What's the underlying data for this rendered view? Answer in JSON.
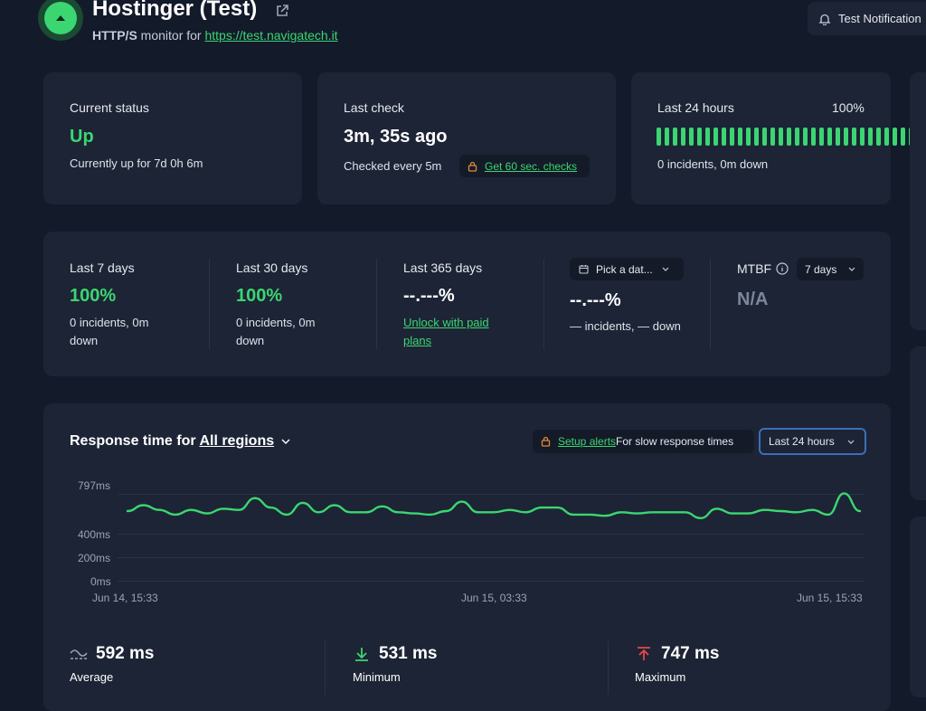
{
  "header": {
    "title": "Hostinger (Test)",
    "subtitle_type": "HTTP/S",
    "subtitle_mid": " monitor for ",
    "url": "https://test.navigatech.it",
    "test_notification_label": "Test Notification"
  },
  "current_status": {
    "label": "Current status",
    "value": "Up",
    "detail": "Currently up for 7d 0h 6m"
  },
  "last_check": {
    "label": "Last check",
    "value": "3m, 35s ago",
    "interval": "Checked every 5m",
    "upgrade_link": "Get 60 sec. checks"
  },
  "last_24h": {
    "label": "Last 24 hours",
    "percent": "100%",
    "detail": "0 incidents, 0m down",
    "bar_count": 32
  },
  "uptime_stats": {
    "last7": {
      "label": "Last 7 days",
      "value": "100%",
      "detail1": "0 incidents, 0m",
      "detail2": "down"
    },
    "last30": {
      "label": "Last 30 days",
      "value": "100%",
      "detail1": "0 incidents, 0m",
      "detail2": "down"
    },
    "last365": {
      "label": "Last 365 days",
      "value": "--.---%",
      "link1": "Unlock with paid",
      "link2": "plans"
    },
    "custom": {
      "picker_label": "Pick a dat...",
      "value": "--.---%",
      "detail": "— incidents, — down"
    },
    "mtbf": {
      "label": "MTBF",
      "select": "7 days",
      "value": "N/A"
    }
  },
  "response_time": {
    "title_prefix": "Response time for ",
    "region_link": "All regions",
    "alert_link": "Setup alerts",
    "alert_text": " For slow response times",
    "range_select": "Last 24 hours"
  },
  "chart_data": {
    "type": "line",
    "y_ticks": [
      "797ms",
      "400ms",
      "200ms",
      "0ms"
    ],
    "x_ticks": [
      "Jun 14, 15:33",
      "Jun 15, 03:33",
      "Jun 15, 15:33"
    ],
    "ylim": [
      0,
      797
    ],
    "series": [
      {
        "values": [
          590,
          640,
          600,
          560,
          600,
          570,
          610,
          600,
          700,
          620,
          560,
          660,
          580,
          640,
          580,
          580,
          630,
          580,
          570,
          560,
          590,
          670,
          580,
          580,
          600,
          580,
          620,
          620,
          560,
          560,
          550,
          580,
          570,
          580,
          580,
          580,
          530,
          610,
          570,
          570,
          600,
          590,
          580,
          600,
          560,
          740,
          590
        ]
      }
    ]
  },
  "summary": {
    "average_value": "592 ms",
    "average_label": "Average",
    "minimum_value": "531 ms",
    "minimum_label": "Minimum",
    "maximum_value": "747 ms",
    "maximum_label": "Maximum"
  },
  "colors": {
    "accent_green": "#3bd671",
    "background": "#131a2a",
    "card": "#1d2435",
    "max_red": "#e5484d"
  }
}
